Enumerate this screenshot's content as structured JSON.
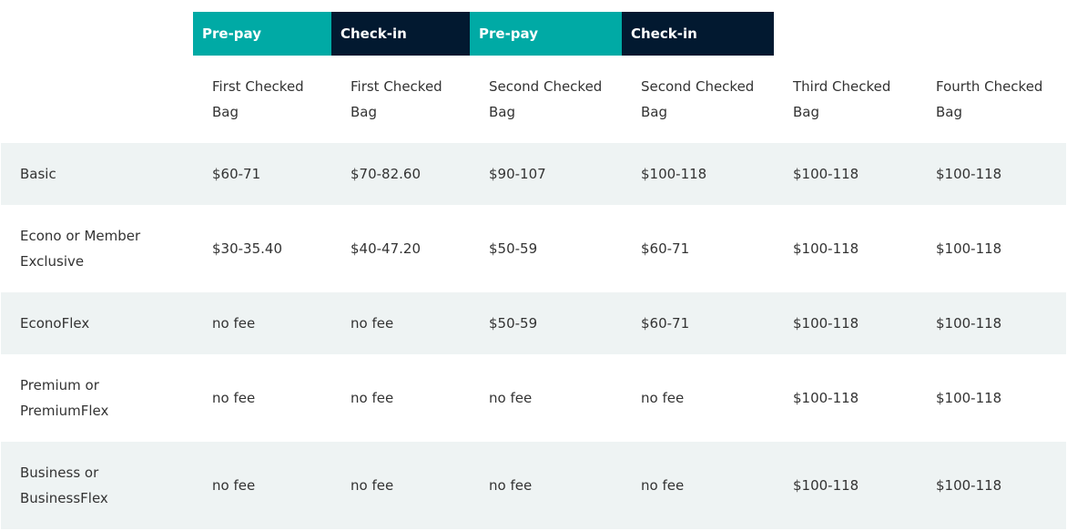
{
  "header_bands": [
    {
      "label": "Pre-pay",
      "color": "#00aaa5"
    },
    {
      "label": "Check-in",
      "color": "#021930"
    },
    {
      "label": "Pre-pay",
      "color": "#00aaa5"
    },
    {
      "label": "Check-in",
      "color": "#021930"
    }
  ],
  "columns": [
    "First Checked Bag",
    "First Checked Bag",
    "Second Checked Bag",
    "Second Checked Bag",
    "Third Checked Bag",
    "Fourth Checked Bag"
  ],
  "rows": [
    {
      "fare": "Basic",
      "fees": [
        "$60-71",
        "$70-82.60",
        "$90-107",
        "$100-118",
        "$100-118",
        "$100-118"
      ]
    },
    {
      "fare": "Econo or Member Exclusive",
      "fees": [
        "$30-35.40",
        "$40-47.20",
        "$50-59",
        "$60-71",
        "$100-118",
        "$100-118"
      ]
    },
    {
      "fare": "EconoFlex",
      "fees": [
        "no fee",
        "no fee",
        "$50-59",
        "$60-71",
        "$100-118",
        "$100-118"
      ]
    },
    {
      "fare": "Premium or PremiumFlex",
      "fees": [
        "no fee",
        "no fee",
        "no fee",
        "no fee",
        "$100-118",
        "$100-118"
      ]
    },
    {
      "fare": "Business or BusinessFlex",
      "fees": [
        "no fee",
        "no fee",
        "no fee",
        "no fee",
        "$100-118",
        "$100-118"
      ]
    }
  ]
}
